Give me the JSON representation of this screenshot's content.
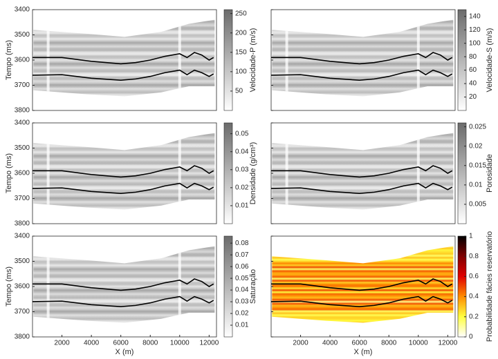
{
  "chart_data": [
    {
      "type": "heatmap",
      "ylabel": "Tempo (ms)",
      "ylim": [
        3400,
        3800
      ],
      "yticks": [
        3400,
        3500,
        3600,
        3700,
        3800
      ],
      "ytick_labels": true,
      "xlim": [
        0,
        12500
      ],
      "colorbar": {
        "label": "Velocidade-P (m/s)",
        "lim": [
          0,
          260
        ],
        "ticks": [
          50,
          100,
          150,
          200,
          250
        ],
        "colormap": [
          "#ffffff",
          "#6b6b6b"
        ]
      },
      "series": [
        {
          "color": "#000000",
          "x": [
            0,
            2000,
            4000,
            6000,
            7000,
            8000,
            9000,
            10000,
            10500,
            11000,
            11500,
            12000,
            12300
          ],
          "values": [
            3590,
            3590,
            3605,
            3615,
            3610,
            3600,
            3585,
            3575,
            3590,
            3570,
            3580,
            3600,
            3590
          ]
        },
        {
          "color": "#000000",
          "x": [
            0,
            2000,
            4000,
            6000,
            7000,
            8000,
            9000,
            10000,
            10500,
            11000,
            11500,
            12000,
            12300
          ],
          "values": [
            3660,
            3658,
            3672,
            3680,
            3675,
            3665,
            3650,
            3640,
            3658,
            3640,
            3650,
            3665,
            3655
          ]
        }
      ]
    },
    {
      "type": "heatmap",
      "ylim": [
        3400,
        3800
      ],
      "yticks": [
        3400,
        3500,
        3600,
        3700,
        3800
      ],
      "ytick_labels": false,
      "xlim": [
        0,
        12500
      ],
      "colorbar": {
        "label": "Velocidade-S (m/s)",
        "lim": [
          0,
          150
        ],
        "ticks": [
          20,
          40,
          60,
          80,
          100,
          120,
          140
        ],
        "colormap": [
          "#ffffff",
          "#6b6b6b"
        ]
      },
      "series": [
        {
          "color": "#000000",
          "x": [
            0,
            2000,
            4000,
            6000,
            7000,
            8000,
            9000,
            10000,
            10500,
            11000,
            11500,
            12000,
            12300
          ],
          "values": [
            3590,
            3590,
            3605,
            3615,
            3610,
            3600,
            3585,
            3575,
            3590,
            3570,
            3580,
            3600,
            3590
          ]
        },
        {
          "color": "#000000",
          "x": [
            0,
            2000,
            4000,
            6000,
            7000,
            8000,
            9000,
            10000,
            10500,
            11000,
            11500,
            12000,
            12300
          ],
          "values": [
            3660,
            3658,
            3672,
            3680,
            3675,
            3665,
            3650,
            3640,
            3658,
            3640,
            3650,
            3665,
            3655
          ]
        }
      ]
    },
    {
      "type": "heatmap",
      "ylabel": "Tempo (ms)",
      "ylim": [
        3400,
        3800
      ],
      "yticks": [
        3400,
        3500,
        3600,
        3700,
        3800
      ],
      "ytick_labels": true,
      "xlim": [
        0,
        12500
      ],
      "colorbar": {
        "label": "Densidade (g/cm³)",
        "lim": [
          0,
          0.056
        ],
        "ticks": [
          0.01,
          0.02,
          0.03,
          0.04,
          0.05
        ],
        "colormap": [
          "#ffffff",
          "#6b6b6b"
        ]
      },
      "series": [
        {
          "color": "#000000",
          "x": [
            0,
            2000,
            4000,
            6000,
            7000,
            8000,
            9000,
            10000,
            10500,
            11000,
            11500,
            12000,
            12300
          ],
          "values": [
            3590,
            3590,
            3605,
            3615,
            3610,
            3600,
            3585,
            3575,
            3590,
            3570,
            3580,
            3600,
            3590
          ]
        },
        {
          "color": "#000000",
          "x": [
            0,
            2000,
            4000,
            6000,
            7000,
            8000,
            9000,
            10000,
            10500,
            11000,
            11500,
            12000,
            12300
          ],
          "values": [
            3660,
            3658,
            3672,
            3680,
            3675,
            3665,
            3650,
            3640,
            3658,
            3640,
            3650,
            3665,
            3655
          ]
        }
      ]
    },
    {
      "type": "heatmap",
      "ylim": [
        3400,
        3800
      ],
      "yticks": [
        3400,
        3500,
        3600,
        3700,
        3800
      ],
      "ytick_labels": false,
      "xlim": [
        0,
        12500
      ],
      "colorbar": {
        "label": "Porosidade",
        "lim": [
          0,
          0.026
        ],
        "ticks": [
          0.005,
          0.01,
          0.015,
          0.02,
          0.025
        ],
        "colormap": [
          "#ffffff",
          "#6b6b6b"
        ]
      },
      "series": [
        {
          "color": "#000000",
          "x": [
            0,
            2000,
            4000,
            6000,
            7000,
            8000,
            9000,
            10000,
            10500,
            11000,
            11500,
            12000,
            12300
          ],
          "values": [
            3590,
            3590,
            3605,
            3615,
            3610,
            3600,
            3585,
            3575,
            3590,
            3570,
            3580,
            3600,
            3590
          ]
        },
        {
          "color": "#000000",
          "x": [
            0,
            2000,
            4000,
            6000,
            7000,
            8000,
            9000,
            10000,
            10500,
            11000,
            11500,
            12000,
            12300
          ],
          "values": [
            3660,
            3658,
            3672,
            3680,
            3675,
            3665,
            3650,
            3640,
            3658,
            3640,
            3650,
            3665,
            3655
          ]
        }
      ]
    },
    {
      "type": "heatmap",
      "ylabel": "Tempo (ms)",
      "xlabel": "X (m)",
      "ylim": [
        3400,
        3800
      ],
      "yticks": [
        3400,
        3500,
        3600,
        3700,
        3800
      ],
      "ytick_labels": true,
      "xlim": [
        0,
        12500
      ],
      "xticks": [
        2000,
        4000,
        6000,
        8000,
        10000,
        12000
      ],
      "colorbar": {
        "label": "Saturação",
        "lim": [
          0,
          0.086
        ],
        "ticks": [
          0.01,
          0.02,
          0.03,
          0.04,
          0.05,
          0.06,
          0.07,
          0.08
        ],
        "colormap": [
          "#ffffff",
          "#6b6b6b"
        ]
      },
      "series": [
        {
          "color": "#000000",
          "x": [
            0,
            2000,
            4000,
            6000,
            7000,
            8000,
            9000,
            10000,
            10500,
            11000,
            11500,
            12000,
            12300
          ],
          "values": [
            3590,
            3590,
            3605,
            3615,
            3610,
            3600,
            3585,
            3575,
            3590,
            3570,
            3580,
            3600,
            3590
          ]
        },
        {
          "color": "#000000",
          "x": [
            0,
            2000,
            4000,
            6000,
            7000,
            8000,
            9000,
            10000,
            10500,
            11000,
            11500,
            12000,
            12300
          ],
          "values": [
            3660,
            3658,
            3672,
            3680,
            3675,
            3665,
            3650,
            3640,
            3658,
            3640,
            3650,
            3665,
            3655
          ]
        }
      ]
    },
    {
      "type": "heatmap",
      "xlabel": "X (m)",
      "ylim": [
        3400,
        3800
      ],
      "yticks": [
        3400,
        3500,
        3600,
        3700,
        3800
      ],
      "ytick_labels": false,
      "xlim": [
        0,
        12500
      ],
      "xticks": [
        2000,
        4000,
        6000,
        8000,
        10000,
        12000
      ],
      "colorbar": {
        "label": "Probabilidade fácies reservatório",
        "lim": [
          0,
          1
        ],
        "ticks": [
          0,
          0.2,
          0.4,
          0.6,
          0.8,
          1
        ],
        "colormap": [
          "#ffffff",
          "#ffff40",
          "#ff8c00",
          "#e00000",
          "#800000",
          "#000000"
        ]
      },
      "series": [
        {
          "color": "#000000",
          "x": [
            0,
            2000,
            4000,
            6000,
            7000,
            8000,
            9000,
            10000,
            10500,
            11000,
            11500,
            12000,
            12300
          ],
          "values": [
            3590,
            3590,
            3605,
            3615,
            3610,
            3600,
            3585,
            3575,
            3590,
            3570,
            3580,
            3600,
            3590
          ]
        },
        {
          "color": "#000000",
          "x": [
            0,
            2000,
            4000,
            6000,
            7000,
            8000,
            9000,
            10000,
            10500,
            11000,
            11500,
            12000,
            12300
          ],
          "values": [
            3660,
            3658,
            3672,
            3680,
            3675,
            3665,
            3650,
            3640,
            3658,
            3640,
            3650,
            3665,
            3655
          ]
        }
      ]
    }
  ]
}
